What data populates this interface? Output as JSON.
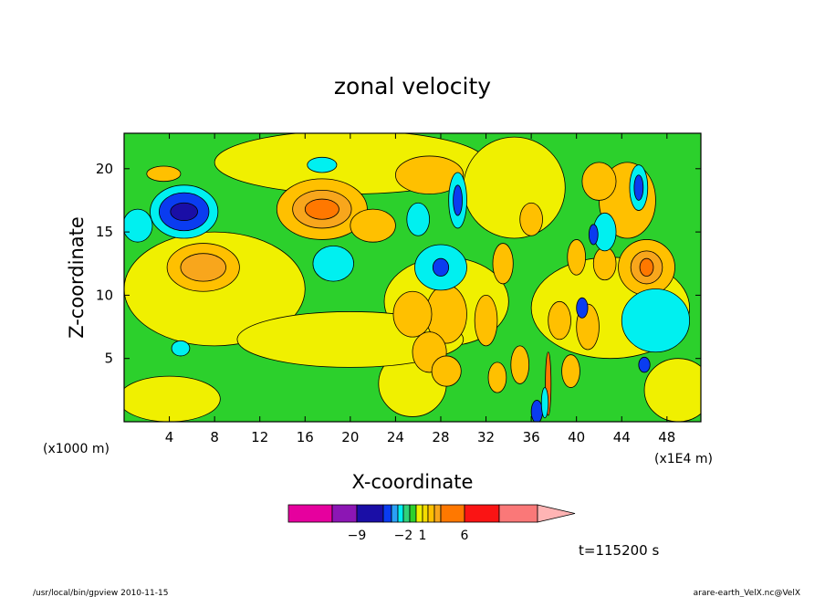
{
  "chart_data": {
    "type": "heatmap",
    "title": "zonal velocity",
    "xlabel": "X-coordinate",
    "ylabel": "Z-coordinate",
    "x_unit": "(x1000 m)",
    "x_unit_right": "(x1E4 m)",
    "x_ticks": [
      4,
      8,
      12,
      16,
      20,
      24,
      28,
      32,
      36,
      40,
      44,
      48
    ],
    "y_ticks": [
      5,
      10,
      15,
      20
    ],
    "xlim": [
      0,
      51
    ],
    "ylim": [
      0,
      22.8
    ],
    "grid": false,
    "time_label": "t=115200 s",
    "colorbar": {
      "tick_labels": [
        {
          "value": -9,
          "text": "−9"
        },
        {
          "value": -2,
          "text": "−2"
        },
        {
          "value": 1,
          "text": "1"
        },
        {
          "value": 6,
          "text": "6"
        }
      ],
      "levels": [
        {
          "lo": null,
          "hi": -12,
          "color": "#e6009e"
        },
        {
          "lo": -12,
          "hi": -9,
          "color": "#8c16b4"
        },
        {
          "lo": -9,
          "hi": -6,
          "color": "#1a0ea6"
        },
        {
          "lo": -6,
          "hi": -4,
          "color": "#0a3cf0"
        },
        {
          "lo": -4,
          "hi": -3,
          "color": "#2aa0f6"
        },
        {
          "lo": -3,
          "hi": -2,
          "color": "#00f0f0"
        },
        {
          "lo": -2,
          "hi": -1,
          "color": "#30d27a"
        },
        {
          "lo": -1,
          "hi": 0,
          "color": "#2cd02c"
        },
        {
          "lo": 0,
          "hi": 1,
          "color": "#f0f000"
        },
        {
          "lo": 1,
          "hi": 2,
          "color": "#f4dc00"
        },
        {
          "lo": 2,
          "hi": 3,
          "color": "#ffc000"
        },
        {
          "lo": 3,
          "hi": 4,
          "color": "#f8a61c"
        },
        {
          "lo": 4,
          "hi": 6,
          "color": "#ff7800"
        },
        {
          "lo": 6,
          "hi": 9,
          "color": "#fa1414"
        },
        {
          "lo": 9,
          "hi": 12,
          "color": "#fa7878"
        },
        {
          "lo": 12,
          "hi": null,
          "color": "#ffb4b4"
        }
      ]
    },
    "background_color": "#2cd02c",
    "regions": [
      {
        "x": 25.5,
        "z": 3.0,
        "rx": 3.0,
        "rz": 2.6,
        "v": 0.5
      },
      {
        "x": 28.5,
        "z": 9.5,
        "rx": 5.5,
        "rz": 3.5,
        "v": 0.5
      },
      {
        "x": 20,
        "z": 20.5,
        "rx": 12,
        "rz": 2.5,
        "v": 0.5
      },
      {
        "x": 8,
        "z": 10.5,
        "rx": 8,
        "rz": 4.5,
        "v": 0.5
      },
      {
        "x": 4,
        "z": 1.8,
        "rx": 4.5,
        "rz": 1.8,
        "v": 0.5
      },
      {
        "x": 20,
        "z": 6.5,
        "rx": 10,
        "rz": 2.2,
        "v": 0.5
      },
      {
        "x": 43,
        "z": 9,
        "rx": 7,
        "rz": 4,
        "v": 0.5
      },
      {
        "x": 49,
        "z": 2.5,
        "rx": 3,
        "rz": 2.5,
        "v": 0.5
      },
      {
        "x": 34.5,
        "z": 18.5,
        "rx": 4.5,
        "rz": 4,
        "v": 0.5
      },
      {
        "x": 7,
        "z": 12.2,
        "rx": 3.2,
        "rz": 1.9,
        "v": 2.5
      },
      {
        "x": 7,
        "z": 12.2,
        "rx": 2,
        "rz": 1.1,
        "v": 3.5
      },
      {
        "x": 17.5,
        "z": 16.8,
        "rx": 4,
        "rz": 2.4,
        "v": 2.5
      },
      {
        "x": 17.5,
        "z": 16.8,
        "rx": 2.6,
        "rz": 1.5,
        "v": 3.5
      },
      {
        "x": 17.5,
        "z": 16.8,
        "rx": 1.5,
        "rz": 0.8,
        "v": 5
      },
      {
        "x": 27,
        "z": 19.5,
        "rx": 3,
        "rz": 1.5,
        "v": 2.5
      },
      {
        "x": 44.5,
        "z": 17.5,
        "rx": 2.5,
        "rz": 3,
        "v": 2.5
      },
      {
        "x": 46.2,
        "z": 12.2,
        "rx": 2.5,
        "rz": 2.2,
        "v": 2.5
      },
      {
        "x": 46.2,
        "z": 12.2,
        "rx": 1.4,
        "rz": 1.3,
        "v": 3.5
      },
      {
        "x": 46.2,
        "z": 12.2,
        "rx": 0.6,
        "rz": 0.7,
        "v": 5
      },
      {
        "x": 3.5,
        "z": 19.6,
        "rx": 1.5,
        "rz": 0.6,
        "v": 2.5
      },
      {
        "x": 28.5,
        "z": 8.5,
        "rx": 1.8,
        "rz": 2.3,
        "v": 2.5
      },
      {
        "x": 25.5,
        "z": 8.5,
        "rx": 1.7,
        "rz": 1.8,
        "v": 2.5
      },
      {
        "x": 27,
        "z": 5.5,
        "rx": 1.5,
        "rz": 1.6,
        "v": 2.5
      },
      {
        "x": 28.5,
        "z": 4.0,
        "rx": 1.3,
        "rz": 1.2,
        "v": 2.5
      },
      {
        "x": 22,
        "z": 15.5,
        "rx": 2,
        "rz": 1.3,
        "v": 2.5
      },
      {
        "x": 36,
        "z": 16,
        "rx": 1,
        "rz": 1.3,
        "v": 2.5
      },
      {
        "x": 32,
        "z": 8,
        "rx": 1,
        "rz": 2,
        "v": 2.5
      },
      {
        "x": 33.5,
        "z": 12.5,
        "rx": 0.9,
        "rz": 1.6,
        "v": 2.5
      },
      {
        "x": 42.5,
        "z": 12.5,
        "rx": 1,
        "rz": 1.3,
        "v": 2.5
      },
      {
        "x": 40,
        "z": 13,
        "rx": 0.8,
        "rz": 1.4,
        "v": 2.5
      },
      {
        "x": 38.5,
        "z": 8,
        "rx": 1,
        "rz": 1.5,
        "v": 2.5
      },
      {
        "x": 41,
        "z": 7.5,
        "rx": 1,
        "rz": 1.8,
        "v": 2.5
      },
      {
        "x": 35,
        "z": 4.5,
        "rx": 0.8,
        "rz": 1.5,
        "v": 2.5
      },
      {
        "x": 33,
        "z": 3.5,
        "rx": 0.8,
        "rz": 1.2,
        "v": 2.5
      },
      {
        "x": 39.5,
        "z": 4,
        "rx": 0.8,
        "rz": 1.3,
        "v": 2.5
      },
      {
        "x": 42,
        "z": 19,
        "rx": 1.5,
        "rz": 1.5,
        "v": 2.5
      },
      {
        "x": 5.3,
        "z": 16.6,
        "rx": 3,
        "rz": 2.1,
        "v": -2.5
      },
      {
        "x": 5.3,
        "z": 16.6,
        "rx": 2.2,
        "rz": 1.5,
        "v": -5
      },
      {
        "x": 5.3,
        "z": 16.6,
        "rx": 1.2,
        "rz": 0.7,
        "v": -7
      },
      {
        "x": 18.5,
        "z": 12.5,
        "rx": 1.8,
        "rz": 1.4,
        "v": -2.5
      },
      {
        "x": 1.2,
        "z": 15.5,
        "rx": 1.3,
        "rz": 1.3,
        "v": -2.5
      },
      {
        "x": 17.5,
        "z": 20.3,
        "rx": 1.3,
        "rz": 0.6,
        "v": -2.5
      },
      {
        "x": 28,
        "z": 12.2,
        "rx": 2.3,
        "rz": 1.8,
        "v": -2.5
      },
      {
        "x": 28,
        "z": 12.2,
        "rx": 0.7,
        "rz": 0.7,
        "v": -5
      },
      {
        "x": 26,
        "z": 16,
        "rx": 1,
        "rz": 1.3,
        "v": -2.5
      },
      {
        "x": 47,
        "z": 8,
        "rx": 3,
        "rz": 2.5,
        "v": -2.5
      },
      {
        "x": 46,
        "z": 4.5,
        "rx": 0.5,
        "rz": 0.6,
        "v": -5
      },
      {
        "x": 42.5,
        "z": 15,
        "rx": 1,
        "rz": 1.5,
        "v": -2.5
      },
      {
        "x": 41.5,
        "z": 14.8,
        "rx": 0.4,
        "rz": 0.8,
        "v": -5
      },
      {
        "x": 40.5,
        "z": 9,
        "rx": 0.5,
        "rz": 0.8,
        "v": -5
      },
      {
        "x": 5,
        "z": 5.8,
        "rx": 0.8,
        "rz": 0.6,
        "v": -2.5
      },
      {
        "x": 29.5,
        "z": 17.5,
        "rx": 0.8,
        "rz": 2.2,
        "v": -2.5
      },
      {
        "x": 29.5,
        "z": 17.5,
        "rx": 0.4,
        "rz": 1.2,
        "v": -5
      },
      {
        "x": 45.5,
        "z": 18.5,
        "rx": 0.8,
        "rz": 1.8,
        "v": -2.5
      },
      {
        "x": 45.5,
        "z": 18.5,
        "rx": 0.4,
        "rz": 1,
        "v": -5
      },
      {
        "x": 36.5,
        "z": 0.8,
        "rx": 0.5,
        "rz": 0.9,
        "v": -5
      },
      {
        "x": 37.5,
        "z": 3,
        "rx": 0.25,
        "rz": 2.5,
        "v": 5
      },
      {
        "x": 37.2,
        "z": 1.5,
        "rx": 0.3,
        "rz": 1.2,
        "v": -2.5
      }
    ]
  },
  "footer": {
    "left": "/usr/local/bin/gpview  2010-11-15",
    "right": "arare-earth_VelX.nc@VelX"
  }
}
